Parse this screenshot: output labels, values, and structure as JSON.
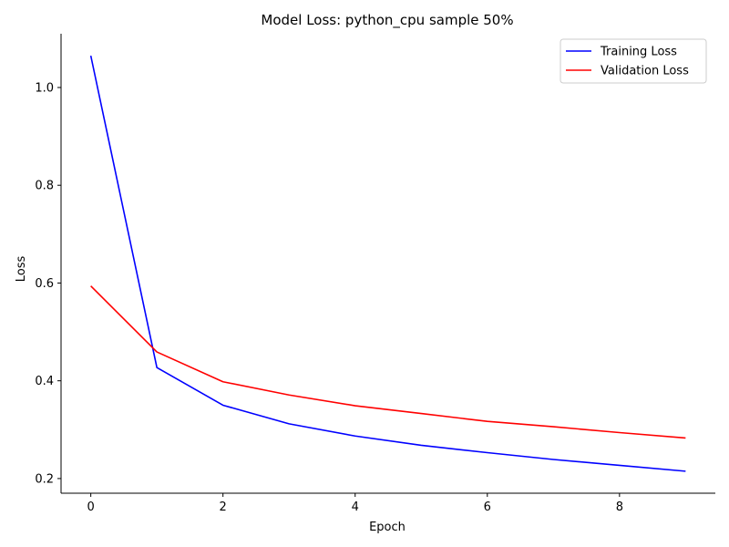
{
  "chart_data": {
    "type": "line",
    "title": "Model Loss: python_cpu sample 50%",
    "xlabel": "Epoch",
    "ylabel": "Loss",
    "x": [
      0,
      1,
      2,
      3,
      4,
      5,
      6,
      7,
      8,
      9
    ],
    "xlim": [
      -0.45,
      9.45
    ],
    "ylim": [
      0.17,
      1.11
    ],
    "xticks": [
      0,
      2,
      4,
      6,
      8
    ],
    "yticks": [
      0.2,
      0.4,
      0.6,
      0.8,
      1.0
    ],
    "xtick_labels": [
      "0",
      "2",
      "4",
      "6",
      "8"
    ],
    "ytick_labels": [
      "0.2",
      "0.4",
      "0.6",
      "0.8",
      "1.0"
    ],
    "grid": false,
    "legend_position": "top-right",
    "series": [
      {
        "name": "Training Loss",
        "color": "#0000ff",
        "values": [
          1.065,
          0.427,
          0.35,
          0.312,
          0.287,
          0.268,
          0.253,
          0.239,
          0.227,
          0.215
        ]
      },
      {
        "name": "Validation Loss",
        "color": "#ff0000",
        "values": [
          0.594,
          0.459,
          0.398,
          0.371,
          0.349,
          0.333,
          0.317,
          0.306,
          0.294,
          0.283
        ]
      }
    ]
  }
}
